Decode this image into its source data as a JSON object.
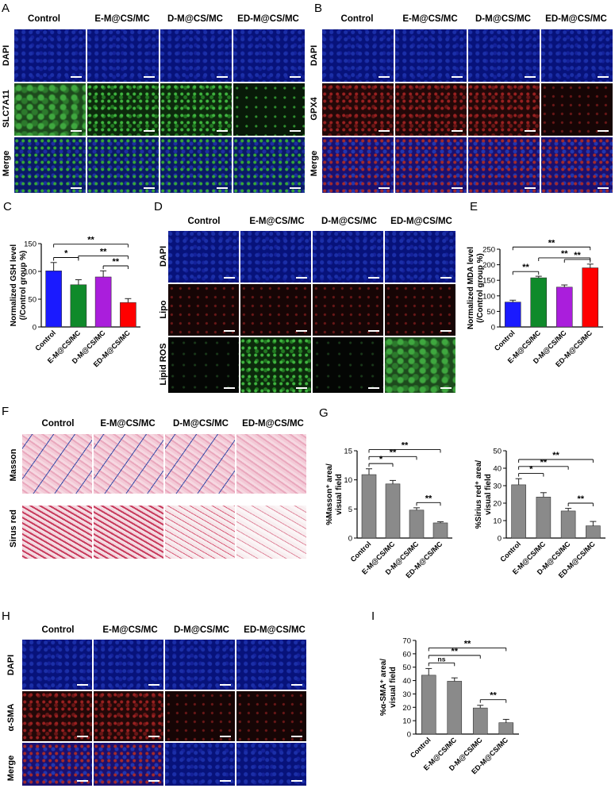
{
  "panels": {
    "A": {
      "letter": "A",
      "columns": [
        "Control",
        "E-M@CS/MC",
        "D-M@CS/MC",
        "ED-M@CS/MC"
      ],
      "rows": [
        "DAPI",
        "SLC7A11",
        "Merge"
      ]
    },
    "B": {
      "letter": "B",
      "columns": [
        "Control",
        "E-M@CS/MC",
        "D-M@CS/MC",
        "ED-M@CS/MC"
      ],
      "rows": [
        "DAPI",
        "GPX4",
        "Merge"
      ]
    },
    "C": {
      "letter": "C"
    },
    "D": {
      "letter": "D",
      "columns": [
        "Control",
        "E-M@CS/MC",
        "D-M@CS/MC",
        "ED-M@CS/MC"
      ],
      "rows": [
        "DAPI",
        "Lipo",
        "Lipid ROS"
      ]
    },
    "E": {
      "letter": "E"
    },
    "F": {
      "letter": "F",
      "columns": [
        "Control",
        "E-M@CS/MC",
        "D-M@CS/MC",
        "ED-M@CS/MC"
      ],
      "rows": [
        "Masson",
        "Sirus red"
      ]
    },
    "G": {
      "letter": "G"
    },
    "H": {
      "letter": "H",
      "columns": [
        "Control",
        "E-M@CS/MC",
        "D-M@CS/MC",
        "ED-M@CS/MC"
      ],
      "rows": [
        "DAPI",
        "α-SMA",
        "Merge"
      ]
    },
    "I": {
      "letter": "I"
    }
  },
  "chart_data": [
    {
      "id": "C",
      "type": "bar",
      "categories": [
        "Control",
        "E-M@CS/MC",
        "D-M@CS/MC",
        "ED-M@CS/MC"
      ],
      "values": [
        101,
        76,
        90,
        44
      ],
      "errors": [
        15,
        9,
        11,
        7
      ],
      "colors": [
        "#1a1aff",
        "#0f8a2a",
        "#aa1edc",
        "#ff0000"
      ],
      "ylabel": "Normalized GSH level\n(/Control group %)",
      "ylim": [
        0,
        150
      ],
      "yticks": [
        0,
        50,
        100,
        150
      ],
      "significance": [
        {
          "from": 0,
          "to": 1,
          "label": "*"
        },
        {
          "from": 0,
          "to": 3,
          "label": "**"
        },
        {
          "from": 1,
          "to": 3,
          "label": "**"
        },
        {
          "from": 2,
          "to": 3,
          "label": "**"
        }
      ]
    },
    {
      "id": "E",
      "type": "bar",
      "categories": [
        "Control",
        "E-M@CS/MC",
        "D-M@CS/MC",
        "ED-M@CS/MC"
      ],
      "values": [
        80,
        158,
        128,
        190
      ],
      "errors": [
        6,
        5,
        7,
        12
      ],
      "colors": [
        "#1a1aff",
        "#0f8a2a",
        "#aa1edc",
        "#ff0000"
      ],
      "ylabel": "Normalized MDA level\n(/Control group %)",
      "ylim": [
        0,
        250
      ],
      "yticks": [
        0,
        50,
        100,
        150,
        200,
        250
      ],
      "significance": [
        {
          "from": 0,
          "to": 1,
          "label": "**"
        },
        {
          "from": 0,
          "to": 3,
          "label": "**"
        },
        {
          "from": 1,
          "to": 3,
          "label": "**"
        },
        {
          "from": 2,
          "to": 3,
          "label": "**"
        }
      ]
    },
    {
      "id": "G1",
      "type": "bar",
      "categories": [
        "Control",
        "E-M@CS/MC",
        "D-M@CS/MC",
        "ED-M@CS/MC"
      ],
      "values": [
        10.9,
        9.3,
        4.8,
        2.6
      ],
      "errors": [
        1.0,
        0.6,
        0.4,
        0.2
      ],
      "colors": [
        "#8a8a8a",
        "#8a8a8a",
        "#8a8a8a",
        "#8a8a8a"
      ],
      "ylabel": "%Masson⁺ area/\nvisual field",
      "ylim": [
        0,
        15
      ],
      "yticks": [
        0,
        5,
        10,
        15
      ],
      "significance": [
        {
          "from": 0,
          "to": 1,
          "label": "*"
        },
        {
          "from": 0,
          "to": 2,
          "label": "**"
        },
        {
          "from": 0,
          "to": 3,
          "label": "**"
        },
        {
          "from": 2,
          "to": 3,
          "label": "**"
        }
      ]
    },
    {
      "id": "G2",
      "type": "bar",
      "categories": [
        "Control",
        "E-M@CS/MC",
        "D-M@CS/MC",
        "ED-M@CS/MC"
      ],
      "values": [
        30.5,
        23.5,
        15.5,
        7
      ],
      "errors": [
        3.5,
        2.5,
        1.5,
        2.5
      ],
      "colors": [
        "#8a8a8a",
        "#8a8a8a",
        "#8a8a8a",
        "#8a8a8a"
      ],
      "ylabel": "%Sirius red⁺ area/\nvisual field",
      "ylim": [
        0,
        50
      ],
      "yticks": [
        0,
        10,
        20,
        30,
        40,
        50
      ],
      "significance": [
        {
          "from": 0,
          "to": 1,
          "label": "*"
        },
        {
          "from": 0,
          "to": 2,
          "label": "**"
        },
        {
          "from": 0,
          "to": 3,
          "label": "**"
        },
        {
          "from": 2,
          "to": 3,
          "label": "**"
        }
      ]
    },
    {
      "id": "I",
      "type": "bar",
      "categories": [
        "Control",
        "E-M@CS/MC",
        "D-M@CS/MC",
        "ED-M@CS/MC"
      ],
      "values": [
        44,
        39.5,
        19.5,
        8.5
      ],
      "errors": [
        5,
        2.5,
        2,
        2.5
      ],
      "colors": [
        "#8a8a8a",
        "#8a8a8a",
        "#8a8a8a",
        "#8a8a8a"
      ],
      "ylabel": "%α-SMA⁺ area/\nvisual field",
      "ylim": [
        0,
        70
      ],
      "yticks": [
        0,
        10,
        20,
        30,
        40,
        50,
        60,
        70
      ],
      "significance": [
        {
          "from": 0,
          "to": 1,
          "label": "ns"
        },
        {
          "from": 0,
          "to": 2,
          "label": "**"
        },
        {
          "from": 0,
          "to": 3,
          "label": "**"
        },
        {
          "from": 2,
          "to": 3,
          "label": "**"
        }
      ]
    }
  ]
}
